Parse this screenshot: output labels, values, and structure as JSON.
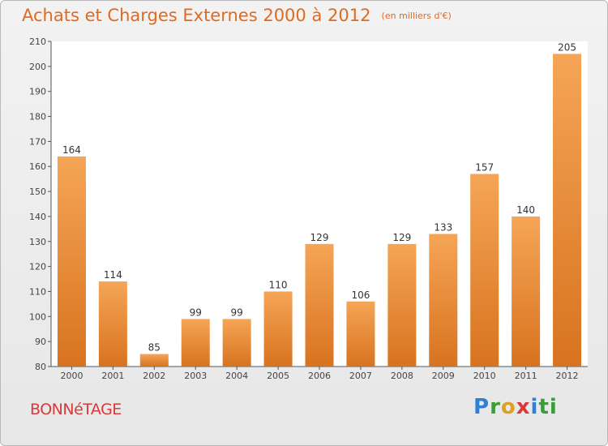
{
  "title": "Achats et Charges Externes 2000 à 2012",
  "subtitle": "(en milliers d'€)",
  "place": "BONNéTAGE",
  "logo": [
    "P",
    "r",
    "o",
    "x",
    "i",
    "ti"
  ],
  "colors": {
    "bar_top": "#f5a556",
    "bar_bottom": "#d8731f",
    "title": "#e06a1f",
    "place": "#d63a3a"
  },
  "chart_data": {
    "type": "bar",
    "categories": [
      "2000",
      "2001",
      "2002",
      "2003",
      "2004",
      "2005",
      "2006",
      "2007",
      "2008",
      "2009",
      "2010",
      "2011",
      "2012"
    ],
    "values": [
      164,
      114,
      85,
      99,
      99,
      110,
      129,
      106,
      129,
      133,
      157,
      140,
      205
    ],
    "ylim": [
      80,
      210
    ],
    "yticks": [
      80,
      90,
      100,
      110,
      120,
      130,
      140,
      150,
      160,
      170,
      180,
      190,
      200,
      210
    ],
    "grid": false,
    "data_labels": true
  }
}
